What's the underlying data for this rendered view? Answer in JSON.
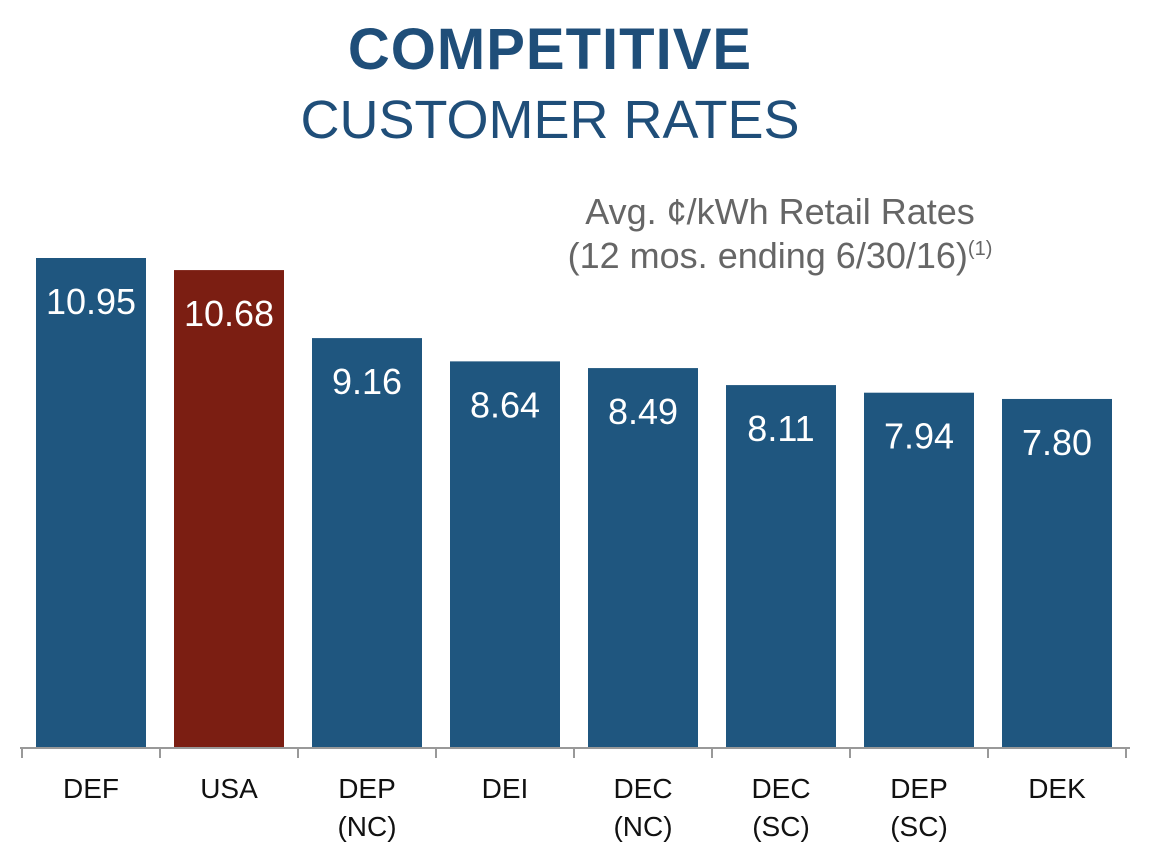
{
  "header": {
    "title": "COMPETITIVE",
    "subtitle": "CUSTOMER RATES"
  },
  "annotation": {
    "line1": "Avg. ¢/kWh Retail Rates",
    "line2": "(12 mos. ending 6/30/16)",
    "footnote": "(1)"
  },
  "chart_data": {
    "type": "bar",
    "title": "",
    "xlabel": "",
    "ylabel": "",
    "categories": [
      "DEF",
      "USA",
      "DEP (NC)",
      "DEI",
      "DEC (NC)",
      "DEC (SC)",
      "DEP (SC)",
      "DEK"
    ],
    "category_lines": [
      [
        "DEF"
      ],
      [
        "USA"
      ],
      [
        "DEP",
        "(NC)"
      ],
      [
        "DEI"
      ],
      [
        "DEC",
        "(NC)"
      ],
      [
        "DEC",
        "(SC)"
      ],
      [
        "DEP",
        "(SC)"
      ],
      [
        "DEK"
      ]
    ],
    "values": [
      10.95,
      10.68,
      9.16,
      8.64,
      8.49,
      8.11,
      7.94,
      7.8
    ],
    "value_labels": [
      "10.95",
      "10.68",
      "9.16",
      "8.64",
      "8.49",
      "8.11",
      "7.94",
      "7.80"
    ],
    "colors": [
      "#1f567f",
      "#7b1e12",
      "#1f567f",
      "#1f567f",
      "#1f567f",
      "#1f567f",
      "#1f567f",
      "#1f567f"
    ],
    "label_color": "#ffffff",
    "axis_color": "#999999",
    "ylim": [
      0,
      11
    ],
    "grid": false,
    "legend": "none"
  }
}
